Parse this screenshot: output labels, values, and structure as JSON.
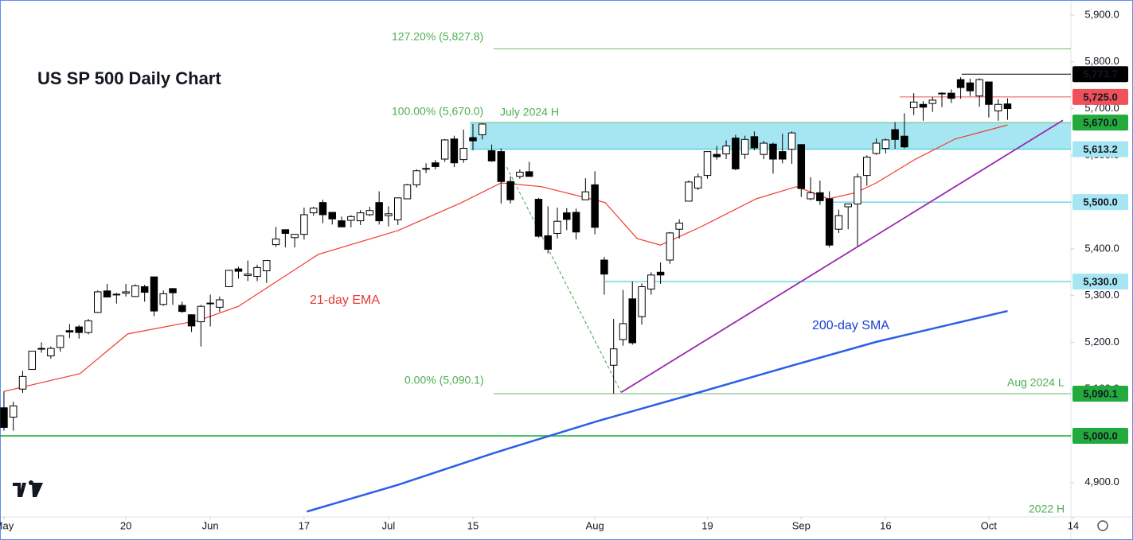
{
  "chart_data": {
    "type": "candlestick",
    "title": "US SP 500 Daily Chart",
    "up_color": "#ffffff",
    "down_color": "#000000",
    "xlim": [
      -0.42,
      113.75
    ],
    "ylim": [
      4826.5,
      5932.3
    ],
    "xticks": [
      {
        "value": 0,
        "label": "May"
      },
      {
        "value": 13,
        "label": "20"
      },
      {
        "value": 22,
        "label": "Jun"
      },
      {
        "value": 32,
        "label": "17"
      },
      {
        "value": 41,
        "label": "Jul"
      },
      {
        "value": 50,
        "label": "15"
      },
      {
        "value": 63,
        "label": "Aug"
      },
      {
        "value": 75,
        "label": "19"
      },
      {
        "value": 85,
        "label": "Sep"
      },
      {
        "value": 94,
        "label": "16"
      },
      {
        "value": 105,
        "label": "Oct"
      },
      {
        "value": 114,
        "label": "14"
      }
    ],
    "yticks": [
      {
        "value": 5900,
        "label": "5,900.0"
      },
      {
        "value": 5800,
        "label": "5,800.0"
      },
      {
        "value": 5700,
        "label": "5,700.0"
      },
      {
        "value": 5600,
        "label": "5,600.0"
      },
      {
        "value": 5500,
        "label": "5,500.0"
      },
      {
        "value": 5400,
        "label": "5,400.0"
      },
      {
        "value": 5300,
        "label": "5,300.0"
      },
      {
        "value": 5200,
        "label": "5,200.0"
      },
      {
        "value": 5100,
        "label": "5,100.0"
      },
      {
        "value": 5000,
        "label": "5,000.0"
      },
      {
        "value": 4900,
        "label": "4,900.0"
      }
    ],
    "candles": [
      [
        5060,
        5095,
        5011,
        5018
      ],
      [
        5040,
        5073,
        5011,
        5064
      ],
      [
        5100,
        5139,
        5092,
        5127
      ],
      [
        5142,
        5181,
        5142,
        5181
      ],
      [
        5187,
        5200,
        5178,
        5187
      ],
      [
        5171,
        5191,
        5165,
        5187
      ],
      [
        5189,
        5215,
        5180,
        5214
      ],
      [
        5225,
        5239,
        5209,
        5222
      ],
      [
        5233,
        5237,
        5208,
        5221
      ],
      [
        5221,
        5250,
        5217,
        5246
      ],
      [
        5264,
        5311,
        5263,
        5308
      ],
      [
        5310,
        5325,
        5296,
        5297
      ],
      [
        5303,
        5306,
        5283,
        5303
      ],
      [
        5305,
        5325,
        5298,
        5308
      ],
      [
        5298,
        5324,
        5297,
        5321
      ],
      [
        5319,
        5323,
        5287,
        5307
      ],
      [
        5340,
        5341,
        5256,
        5267
      ],
      [
        5281,
        5311,
        5278,
        5304
      ],
      [
        5315,
        5316,
        5280,
        5306
      ],
      [
        5279,
        5287,
        5263,
        5266
      ],
      [
        5259,
        5260,
        5222,
        5235
      ],
      [
        5244,
        5280,
        5191,
        5277
      ],
      [
        5284,
        5302,
        5234,
        5283
      ],
      [
        5275,
        5298,
        5265,
        5291
      ],
      [
        5319,
        5354,
        5318,
        5354
      ],
      [
        5357,
        5362,
        5336,
        5352
      ],
      [
        5343,
        5375,
        5331,
        5346
      ],
      [
        5341,
        5366,
        5331,
        5360
      ],
      [
        5353,
        5375,
        5327,
        5375
      ],
      [
        5409,
        5447,
        5404,
        5421
      ],
      [
        5441,
        5441,
        5403,
        5433
      ],
      [
        5424,
        5432,
        5403,
        5431
      ],
      [
        5431,
        5488,
        5420,
        5473
      ],
      [
        5477,
        5490,
        5471,
        5487
      ],
      [
        5499,
        5505,
        5455,
        5473
      ],
      [
        5478,
        5478,
        5452,
        5464
      ],
      [
        5460,
        5469,
        5447,
        5447
      ],
      [
        5461,
        5472,
        5446,
        5469
      ],
      [
        5460,
        5483,
        5451,
        5477
      ],
      [
        5473,
        5490,
        5470,
        5482
      ],
      [
        5499,
        5523,
        5452,
        5460
      ],
      [
        5471,
        5491,
        5448,
        5475
      ],
      [
        5462,
        5510,
        5451,
        5509
      ],
      [
        5507,
        5539,
        5507,
        5537
      ],
      [
        5537,
        5570,
        5531,
        5567
      ],
      [
        5572,
        5583,
        5562,
        5572
      ],
      [
        5584,
        5590,
        5570,
        5576
      ],
      [
        5592,
        5635,
        5586,
        5633
      ],
      [
        5635,
        5642,
        5575,
        5584
      ],
      [
        5591,
        5655,
        5584,
        5615
      ],
      [
        5638,
        5667,
        5611,
        5631
      ],
      [
        5644,
        5669,
        5634,
        5667
      ],
      [
        5610,
        5623,
        5586,
        5588
      ],
      [
        5608,
        5615,
        5497,
        5544
      ],
      [
        5544,
        5555,
        5497,
        5505
      ],
      [
        5555,
        5570,
        5550,
        5564
      ],
      [
        5565,
        5586,
        5554,
        5555
      ],
      [
        5506,
        5509,
        5424,
        5427
      ],
      [
        5428,
        5491,
        5390,
        5399
      ],
      [
        5433,
        5488,
        5422,
        5459
      ],
      [
        5477,
        5487,
        5440,
        5463
      ],
      [
        5478,
        5486,
        5420,
        5436
      ],
      [
        5505,
        5551,
        5505,
        5522
      ],
      [
        5537,
        5566,
        5431,
        5446
      ],
      [
        5376,
        5383,
        5302,
        5346
      ],
      [
        5151,
        5250,
        5090,
        5186
      ],
      [
        5206,
        5312,
        5193,
        5240
      ],
      [
        5293,
        5330,
        5195,
        5199
      ],
      [
        5255,
        5326,
        5238,
        5319
      ],
      [
        5314,
        5350,
        5302,
        5344
      ],
      [
        5350,
        5371,
        5325,
        5344
      ],
      [
        5376,
        5436,
        5368,
        5434
      ],
      [
        5442,
        5463,
        5422,
        5455
      ],
      [
        5502,
        5546,
        5502,
        5543
      ],
      [
        5530,
        5561,
        5526,
        5554
      ],
      [
        5557,
        5608,
        5550,
        5608
      ],
      [
        5602,
        5620,
        5591,
        5597
      ],
      [
        5603,
        5632,
        5592,
        5620
      ],
      [
        5637,
        5644,
        5568,
        5571
      ],
      [
        5602,
        5642,
        5592,
        5634
      ],
      [
        5640,
        5651,
        5611,
        5616
      ],
      [
        5602,
        5631,
        5592,
        5626
      ],
      [
        5624,
        5627,
        5561,
        5592
      ],
      [
        5608,
        5646,
        5583,
        5592
      ],
      [
        5613,
        5651,
        5582,
        5648
      ],
      [
        5623,
        5624,
        5511,
        5529
      ],
      [
        5507,
        5553,
        5504,
        5520
      ],
      [
        5520,
        5546,
        5494,
        5503
      ],
      [
        5507,
        5523,
        5403,
        5408
      ],
      [
        5442,
        5484,
        5434,
        5471
      ],
      [
        5490,
        5497,
        5442,
        5496
      ],
      [
        5496,
        5561,
        5406,
        5554
      ],
      [
        5557,
        5600,
        5535,
        5596
      ],
      [
        5604,
        5636,
        5601,
        5626
      ],
      [
        5615,
        5636,
        5604,
        5633
      ],
      [
        5655,
        5671,
        5614,
        5634
      ],
      [
        5641,
        5690,
        5615,
        5618
      ],
      [
        5702,
        5733,
        5686,
        5714
      ],
      [
        5709,
        5716,
        5674,
        5703
      ],
      [
        5711,
        5725,
        5693,
        5718
      ],
      [
        5733,
        5735,
        5703,
        5732
      ],
      [
        5733,
        5741,
        5712,
        5722
      ],
      [
        5762,
        5767,
        5721,
        5745
      ],
      [
        5755,
        5764,
        5727,
        5738
      ],
      [
        5727,
        5765,
        5704,
        5762
      ],
      [
        5757,
        5757,
        5681,
        5709
      ],
      [
        5695,
        5720,
        5674,
        5709
      ],
      [
        5710,
        5722,
        5676,
        5700
      ]
    ],
    "series": [
      {
        "name": "21-day EMA",
        "color": "#f23b2f",
        "width": 1.2,
        "x": [
          0,
          8.1,
          13.2,
          20.8,
          25,
          33.5,
          42,
          48.8,
          53,
          57.3,
          64.1,
          67.5,
          70,
          74.3,
          80.2,
          84.5,
          87.9,
          90.8,
          93,
          97.2,
          101.4,
          107
        ],
        "values": [
          5095,
          5133,
          5218,
          5247,
          5277,
          5388,
          5439,
          5499,
          5541,
          5533,
          5499,
          5422,
          5408,
          5447,
          5507,
          5533,
          5507,
          5520,
          5541,
          5592,
          5635,
          5665
        ]
      },
      {
        "name": "200-day SMA",
        "color": "#2a5fe6",
        "width": 2.5,
        "x": [
          32.3,
          42,
          52.2,
          63.2,
          74.3,
          84.5,
          93,
          107
        ],
        "values": [
          4838,
          4895,
          4963,
          5031,
          5094,
          5153,
          5201,
          5267
        ]
      }
    ],
    "trendlines": [
      {
        "color": "#9c27b0",
        "dash": false,
        "x": [
          65.8,
          112.9
        ],
        "values": [
          5093,
          5675
        ]
      },
      {
        "color": "#43a047",
        "dash": true,
        "x": [
          53.6,
          65.8
        ],
        "values": [
          5575,
          5093
        ]
      }
    ],
    "zones": [
      {
        "from": 5613.2,
        "to": 5670.0,
        "x0": 49.7,
        "color": "#a6e6f3"
      }
    ],
    "levels": [
      {
        "value": 5827.8,
        "x0": 52.2,
        "color": "#66bb6a"
      },
      {
        "value": 5773.7,
        "x0": 102.1,
        "color": "#000000",
        "label": "5,773.7",
        "tag_bg": "#000000",
        "tag_fg": "#ffffff"
      },
      {
        "value": 5725.0,
        "x0": 95.5,
        "color": "#f0505a",
        "label": "5,725.0",
        "tag_bg": "#f0505a",
        "tag_fg": "#ffffff"
      },
      {
        "value": 5670.0,
        "x0": 49.7,
        "color": "#66bb6a",
        "label": "5,670.0",
        "tag_bg": "#22ab3c",
        "tag_fg": "#ffffff"
      },
      {
        "value": 5613.2,
        "x0": 49.7,
        "color": "#26c6da",
        "label": "5,613.2",
        "tag_bg": "#a6e6f3",
        "tag_fg": "#000000"
      },
      {
        "value": 5500.0,
        "x0": 87.9,
        "color": "#26c6da",
        "label": "5,500.0",
        "tag_bg": "#a6e6f3",
        "tag_fg": "#000000"
      },
      {
        "value": 5330.0,
        "x0": 64.1,
        "color": "#26c6da",
        "label": "5,330.0",
        "tag_bg": "#a6e6f3",
        "tag_fg": "#000000"
      },
      {
        "value": 5090.1,
        "x0": 52.2,
        "color": "#66bb6a",
        "label": "5,090.1",
        "tag_bg": "#22ab3c",
        "tag_fg": "#ffffff"
      },
      {
        "value": 5000.0,
        "x0": -0.42,
        "color": "#22ab3c",
        "label": "5,000.0",
        "tag_bg": "#22ab3c",
        "tag_fg": "#ffffff"
      }
    ],
    "annotations": {
      "fib_127": "127.20% (5,827.8)",
      "fib_100": "100.00% (5,670.0)",
      "fib_0": "0.00% (5,090.1)",
      "july_high": "July 2024 H",
      "aug_low": "Aug 2024 L",
      "high_2022": "2022 H",
      "ema_label": "21-day EMA",
      "sma_label": "200-day SMA"
    }
  }
}
